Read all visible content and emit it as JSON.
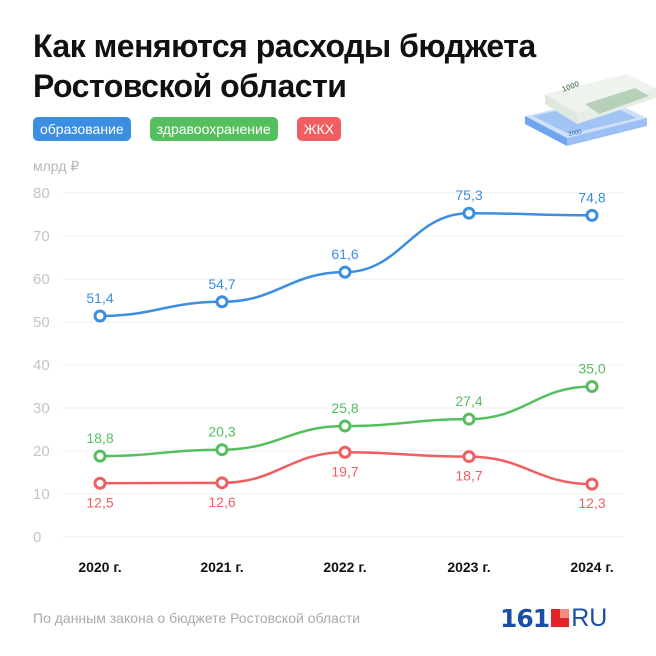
{
  "title": "Как меняются расходы бюджета Ростовской области",
  "legend": [
    {
      "label": "образование",
      "color": "#3b8ee0"
    },
    {
      "label": "здравоохранение",
      "color": "#55bf5f"
    },
    {
      "label": "ЖКХ",
      "color": "#ef5f61"
    }
  ],
  "unit": "млрд ₽",
  "illustration": {
    "icon": "banknotes-icon",
    "note_labels": [
      "1000",
      "2000"
    ]
  },
  "source": "По данным закона о бюджете Ростовской области",
  "logo": {
    "number": "161",
    "suffix": "RU"
  },
  "chart_data": {
    "type": "line",
    "title": "Как меняются расходы бюджета Ростовской области",
    "ylabel": "млрд ₽",
    "xlabel": "",
    "categories": [
      "2020 г.",
      "2021 г.",
      "2022 г.",
      "2023 г.",
      "2024 г."
    ],
    "ylim": [
      0,
      80
    ],
    "yticks": [
      0,
      10,
      20,
      30,
      40,
      50,
      60,
      70,
      80
    ],
    "grid": true,
    "legend_position": "top-left",
    "series": [
      {
        "name": "образование",
        "color": "#3b8ee0",
        "values": [
          51.4,
          54.7,
          61.6,
          75.3,
          74.8
        ],
        "labels": [
          "51,4",
          "54,7",
          "61,6",
          "75,3",
          "74,8"
        ],
        "label_position": "above"
      },
      {
        "name": "здравоохранение",
        "color": "#55bf5f",
        "values": [
          18.8,
          20.3,
          25.8,
          27.4,
          35.0
        ],
        "labels": [
          "18,8",
          "20,3",
          "25,8",
          "27,4",
          "35,0"
        ],
        "label_position": "above"
      },
      {
        "name": "ЖКХ",
        "color": "#ef5f61",
        "values": [
          12.5,
          12.6,
          19.7,
          18.7,
          12.3
        ],
        "labels": [
          "12,5",
          "12,6",
          "19,7",
          "18,7",
          "12,3"
        ],
        "label_position": "below"
      }
    ]
  }
}
